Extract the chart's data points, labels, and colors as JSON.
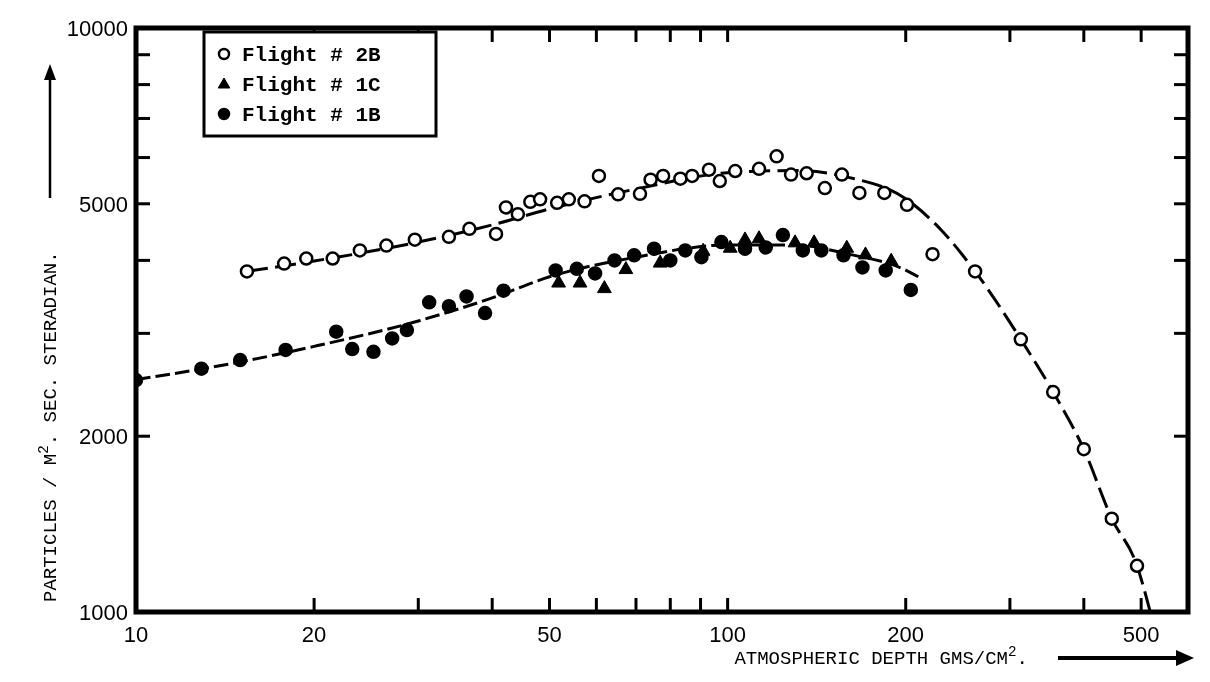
{
  "chart_data": {
    "type": "scatter",
    "xlabel": "ATMOSPHERIC DEPTH GMS/CM$^{2}$.",
    "ylabel": "PARTICLES / M$^{2}$. SEC. STERADIAN.",
    "log": "xy",
    "legend": "top left",
    "grid": false,
    "xlim": [
      10,
      600
    ],
    "ylim": [
      1000,
      10000
    ],
    "xticks": [
      10,
      20,
      {
        "value": 30,
        "label": null
      },
      {
        "value": 40,
        "label": null
      },
      50,
      {
        "value": 60,
        "label": null
      },
      {
        "value": 70,
        "label": null
      },
      {
        "value": 80,
        "label": null
      },
      {
        "value": 90,
        "label": null
      },
      100,
      200,
      {
        "value": 300,
        "label": null
      },
      {
        "value": 400,
        "label": null
      },
      500
    ],
    "yticks": [
      1000,
      2000,
      {
        "value": 3000,
        "label": null
      },
      {
        "value": 4000,
        "label": null
      },
      5000,
      {
        "value": 6000,
        "label": null
      },
      {
        "value": 7000,
        "label": null
      },
      {
        "value": 8000,
        "label": null
      },
      {
        "value": 9000,
        "label": null
      },
      10000
    ],
    "series": [
      {
        "name": "Flight # 2B",
        "marker": "circle",
        "color": "#ffffff",
        "x": [
          15.4,
          17.8,
          19.4,
          21.5,
          23.9,
          26.5,
          29.6,
          33.8,
          36.6,
          40.6,
          42.2,
          44.2,
          46.4,
          48.2,
          51.5,
          53.9,
          57.3,
          60.6,
          65.3,
          71.1,
          74.1,
          77.8,
          83.2,
          87.1,
          93,
          97,
          103,
          113,
          121,
          128,
          136,
          146,
          156,
          167,
          184,
          201,
          222,
          262,
          313,
          355,
          400,
          446,
          492
        ],
        "values": [
          3830,
          3950,
          4030,
          4030,
          4160,
          4240,
          4340,
          4390,
          4530,
          4440,
          4930,
          4800,
          5040,
          5090,
          5020,
          5090,
          5050,
          5580,
          5190,
          5200,
          5500,
          5580,
          5520,
          5580,
          5720,
          5470,
          5690,
          5740,
          6030,
          5610,
          5640,
          5320,
          5610,
          5220,
          5220,
          4980,
          4100,
          3830,
          2930,
          2380,
          1900,
          1445,
          1200
        ]
      },
      {
        "name": "Flight # 1C",
        "marker": "triangle",
        "color": "#000000",
        "x": [
          51.8,
          56.3,
          61.9,
          67.3,
          76.9,
          90.9,
          101,
          107,
          113,
          130,
          140,
          159,
          171,
          189
        ],
        "values": [
          3670,
          3670,
          3590,
          3870,
          3970,
          4160,
          4210,
          4350,
          4370,
          4300,
          4300,
          4210,
          4100,
          4000
        ]
      },
      {
        "name": "Flight # 1B",
        "marker": "circle",
        "color": "#000000",
        "x": [
          10,
          12.9,
          15,
          17.9,
          21.8,
          23.2,
          25.2,
          27.1,
          28.7,
          31.3,
          33.8,
          36.2,
          38.9,
          41.8,
          51.2,
          55.6,
          59.7,
          64.4,
          69.5,
          75.1,
          80,
          84.8,
          90.3,
          97.6,
          107,
          116,
          124,
          134,
          144,
          157,
          169,
          185,
          204
        ],
        "values": [
          2495,
          2610,
          2700,
          2810,
          3020,
          2820,
          2790,
          2940,
          3040,
          3390,
          3340,
          3470,
          3250,
          3550,
          3845,
          3870,
          3800,
          4000,
          4080,
          4190,
          4000,
          4160,
          4050,
          4300,
          4190,
          4210,
          4420,
          4160,
          4160,
          4080,
          3890,
          3845,
          3560
        ]
      },
      {
        "type": "line",
        "line_style": "dashed",
        "color": "#000000",
        "x": [
          15.4,
          20,
          30,
          40,
          50,
          70,
          100,
          130,
          160,
          200,
          230,
          262,
          313,
          355,
          400,
          446,
          492,
          518
        ],
        "values": [
          3830,
          3990,
          4300,
          4600,
          4900,
          5300,
          5650,
          5700,
          5550,
          5100,
          4500,
          3830,
          2930,
          2380,
          1900,
          1445,
          1200,
          1000
        ]
      },
      {
        "type": "line",
        "line_style": "dashed",
        "color": "#000000",
        "x": [
          10,
          15,
          20,
          30,
          40,
          50,
          70,
          100,
          130,
          160,
          200,
          210
        ],
        "values": [
          2500,
          2680,
          2850,
          3150,
          3450,
          3750,
          4050,
          4250,
          4250,
          4100,
          3850,
          3750
        ]
      }
    ]
  }
}
